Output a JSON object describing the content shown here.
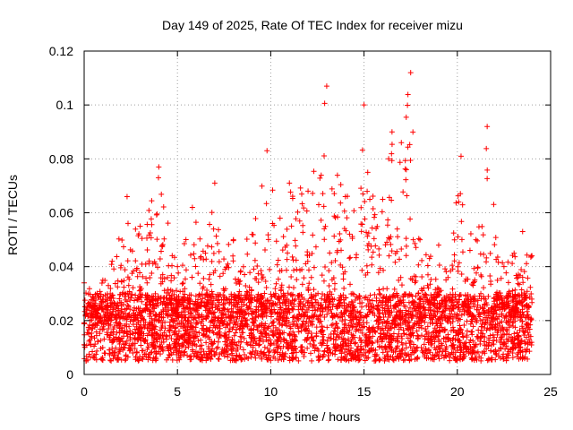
{
  "chart_data": {
    "type": "scatter",
    "title": "Day 149 of 2025, Rate Of TEC Index for receiver mizu",
    "xlabel": "GPS time / hours",
    "ylabel": "ROTI / TECUs",
    "xlim": [
      0,
      25
    ],
    "ylim": [
      0,
      0.12
    ],
    "x_ticks": [
      0,
      5,
      10,
      15,
      20,
      25
    ],
    "y_ticks": [
      0,
      0.02,
      0.04,
      0.06,
      0.08,
      0.1,
      0.12
    ],
    "x_tick_labels": [
      "0",
      "5",
      "10",
      "15",
      "20",
      "25"
    ],
    "y_tick_labels": [
      "0",
      "0.02",
      "0.04",
      "0.06",
      "0.08",
      "0.1",
      "0.12"
    ],
    "grid": true,
    "marker": "+",
    "series": [
      {
        "name": "ROTI",
        "color": "#ff0000",
        "time_range_hours": [
          0,
          24
        ],
        "typical_range": [
          0.005,
          0.03
        ],
        "envelope": [
          {
            "x": 0.0,
            "y": 0.034
          },
          {
            "x": 1.0,
            "y": 0.035
          },
          {
            "x": 1.5,
            "y": 0.042
          },
          {
            "x": 2.3,
            "y": 0.066
          },
          {
            "x": 3.0,
            "y": 0.055
          },
          {
            "x": 4.0,
            "y": 0.077
          },
          {
            "x": 5.0,
            "y": 0.04
          },
          {
            "x": 5.8,
            "y": 0.062
          },
          {
            "x": 6.5,
            "y": 0.045
          },
          {
            "x": 7.0,
            "y": 0.071
          },
          {
            "x": 8.0,
            "y": 0.05
          },
          {
            "x": 9.0,
            "y": 0.052
          },
          {
            "x": 9.8,
            "y": 0.083
          },
          {
            "x": 10.5,
            "y": 0.058
          },
          {
            "x": 11.0,
            "y": 0.071
          },
          {
            "x": 12.0,
            "y": 0.068
          },
          {
            "x": 13.0,
            "y": 0.107
          },
          {
            "x": 14.0,
            "y": 0.066
          },
          {
            "x": 15.0,
            "y": 0.1
          },
          {
            "x": 16.0,
            "y": 0.065
          },
          {
            "x": 16.5,
            "y": 0.09
          },
          {
            "x": 17.0,
            "y": 0.086
          },
          {
            "x": 17.5,
            "y": 0.112
          },
          {
            "x": 18.0,
            "y": 0.05
          },
          {
            "x": 19.0,
            "y": 0.048
          },
          {
            "x": 19.5,
            "y": 0.036
          },
          {
            "x": 20.2,
            "y": 0.081
          },
          {
            "x": 21.0,
            "y": 0.05
          },
          {
            "x": 21.6,
            "y": 0.092
          },
          {
            "x": 22.5,
            "y": 0.04
          },
          {
            "x": 23.5,
            "y": 0.053
          },
          {
            "x": 24.0,
            "y": 0.044
          }
        ]
      }
    ]
  }
}
